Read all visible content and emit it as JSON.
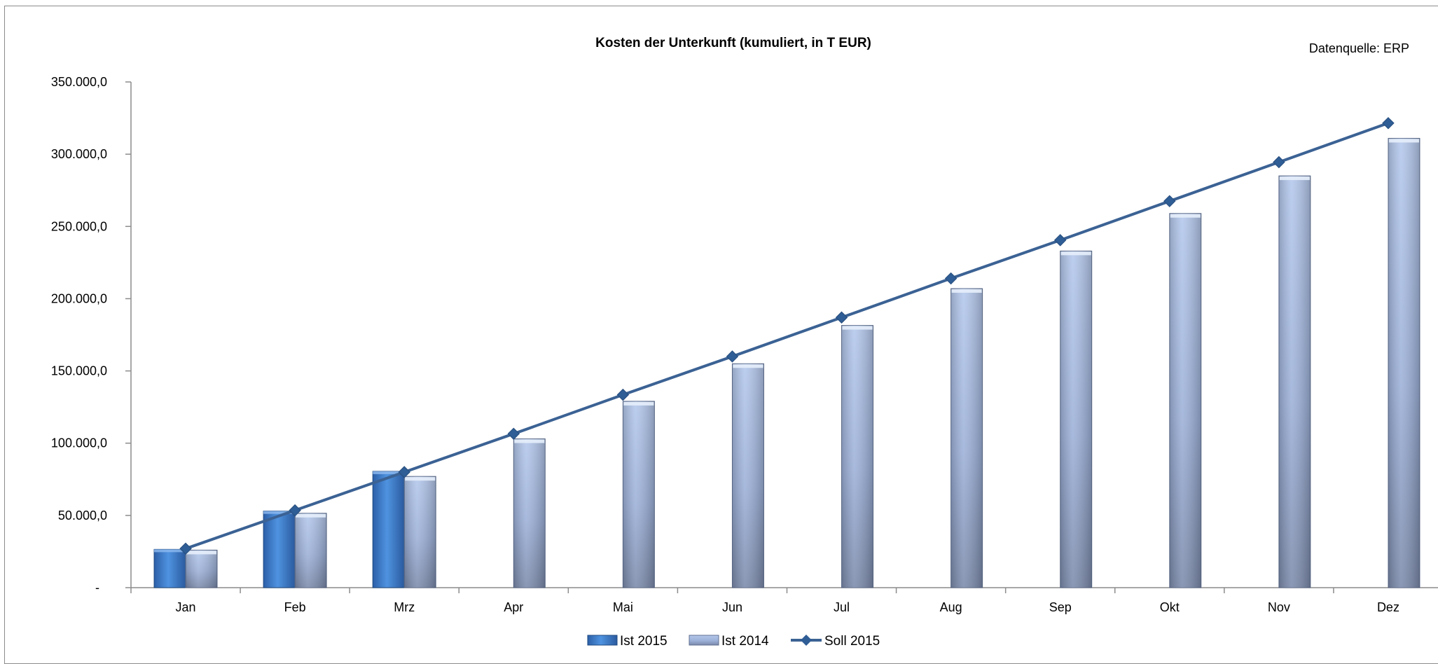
{
  "chart_data": {
    "type": "bar",
    "title": "Kosten der Unterkunft (kumuliert, in T EUR)",
    "source_note": "Datenquelle: ERP",
    "categories": [
      "Jan",
      "Feb",
      "Mrz",
      "Apr",
      "Mai",
      "Jun",
      "Jul",
      "Aug",
      "Sep",
      "Okt",
      "Nov",
      "Dez"
    ],
    "ylim": [
      0,
      350000
    ],
    "yticks": [
      {
        "value": 0,
        "label": "-"
      },
      {
        "value": 50000,
        "label": "50.000,0"
      },
      {
        "value": 100000,
        "label": "100.000,0"
      },
      {
        "value": 150000,
        "label": "150.000,0"
      },
      {
        "value": 200000,
        "label": "200.000,0"
      },
      {
        "value": 250000,
        "label": "250.000,0"
      },
      {
        "value": 300000,
        "label": "300.000,0"
      },
      {
        "value": 350000,
        "label": "350.000,0"
      }
    ],
    "grid": false,
    "legend_position": "bottom-center",
    "series": [
      {
        "name": "Ist 2015",
        "kind": "bar",
        "color": "#3f7fcc",
        "values": [
          26500,
          53000,
          80500,
          null,
          null,
          null,
          null,
          null,
          null,
          null,
          null,
          null
        ]
      },
      {
        "name": "Ist 2014",
        "kind": "bar",
        "color": "#a6bde3",
        "values": [
          26000,
          51500,
          77000,
          103000,
          129000,
          155000,
          181500,
          207000,
          233000,
          259000,
          285000,
          311000
        ]
      },
      {
        "name": "Soll 2015",
        "kind": "line",
        "color": "#3b6294",
        "values": [
          27000,
          53500,
          80000,
          106500,
          133500,
          160000,
          187000,
          214000,
          240500,
          267500,
          294500,
          321500
        ]
      }
    ]
  }
}
